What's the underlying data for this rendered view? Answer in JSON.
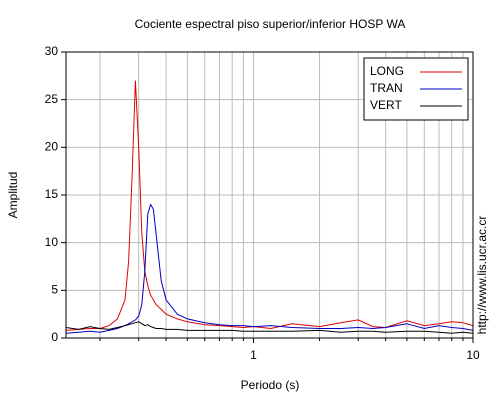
{
  "chart_data": {
    "type": "line",
    "title": "Cociente espectral piso superior/inferior  HOSP WA",
    "x_label": "Periodo (s)",
    "y_label": "Amplitud",
    "side_text": "http://www.lis.ucr.ac.cr",
    "log_x": true,
    "grid": true,
    "legend": "upper right",
    "xlim": [
      0.14,
      10
    ],
    "ylim": [
      0,
      30
    ],
    "xticks": [
      1,
      10
    ],
    "xminor": [
      0.2,
      0.3,
      0.4,
      0.5,
      0.6,
      0.7,
      0.8,
      0.9,
      2,
      3,
      4,
      5,
      6,
      7,
      8,
      9
    ],
    "yticks": [
      0,
      5,
      10,
      15,
      20,
      25,
      30
    ],
    "x": [
      0.14,
      0.16,
      0.18,
      0.2,
      0.22,
      0.24,
      0.26,
      0.27,
      0.28,
      0.29,
      0.3,
      0.31,
      0.32,
      0.33,
      0.34,
      0.35,
      0.36,
      0.38,
      0.4,
      0.45,
      0.5,
      0.6,
      0.7,
      0.8,
      0.9,
      1,
      1.2,
      1.5,
      2,
      2.5,
      3,
      3.5,
      4,
      5,
      6,
      7,
      8,
      9,
      10
    ],
    "series": [
      {
        "name": "LONG",
        "color": "#e00000",
        "values": [
          0.8,
          0.9,
          1,
          1,
          1.3,
          2,
          4,
          8,
          17,
          27,
          20,
          11,
          7,
          5.5,
          4.5,
          4,
          3.5,
          3,
          2.5,
          2,
          1.7,
          1.4,
          1.3,
          1.2,
          1.1,
          1.2,
          1,
          1.5,
          1.2,
          1.6,
          1.9,
          1.2,
          1.1,
          1.8,
          1.3,
          1.5,
          1.7,
          1.6,
          1.3
        ]
      },
      {
        "name": "TRAN",
        "color": "#0000c0",
        "values": [
          0.5,
          0.6,
          0.7,
          0.6,
          0.8,
          1,
          1.3,
          1.5,
          1.7,
          1.9,
          2.3,
          3.5,
          7,
          13,
          14,
          13.5,
          11,
          6,
          4,
          2.5,
          2,
          1.6,
          1.4,
          1.3,
          1.3,
          1.2,
          1.3,
          1.1,
          1,
          1,
          1.1,
          1,
          1.1,
          1.5,
          1,
          1.3,
          1.1,
          1,
          0.8
        ]
      },
      {
        "name": "VERT",
        "color": "#000000",
        "values": [
          1.1,
          0.9,
          1.2,
          1,
          0.9,
          1.1,
          1.3,
          1.4,
          1.5,
          1.6,
          1.7,
          1.5,
          1.3,
          1.4,
          1.2,
          1.1,
          1,
          1,
          0.9,
          0.9,
          0.8,
          0.8,
          0.8,
          0.8,
          0.7,
          0.7,
          0.7,
          0.7,
          0.8,
          0.6,
          0.7,
          0.7,
          0.6,
          0.7,
          0.7,
          0.6,
          0.5,
          0.6,
          0.5
        ]
      }
    ]
  }
}
